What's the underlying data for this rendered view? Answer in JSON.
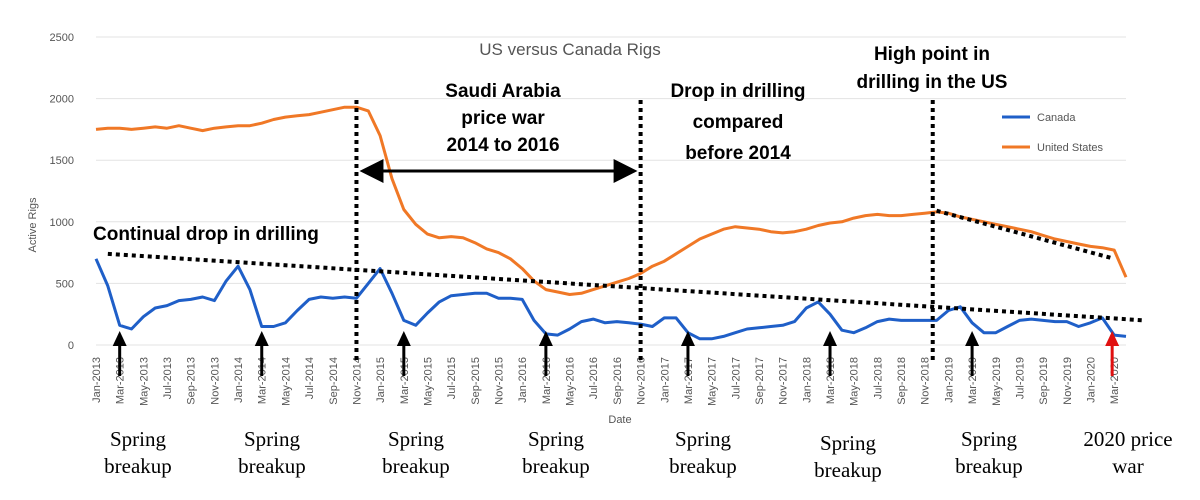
{
  "chart_data": {
    "type": "line",
    "title": "US versus Canada Rigs",
    "xlabel": "Date",
    "ylabel": "Active Rigs",
    "ylim": [
      0,
      2500
    ],
    "yticks": [
      0,
      500,
      1000,
      1500,
      2000,
      2500
    ],
    "x": [
      "Jan-2013",
      "Feb-2013",
      "Mar-2013",
      "Apr-2013",
      "May-2013",
      "Jun-2013",
      "Jul-2013",
      "Aug-2013",
      "Sep-2013",
      "Oct-2013",
      "Nov-2013",
      "Dec-2013",
      "Jan-2014",
      "Feb-2014",
      "Mar-2014",
      "Apr-2014",
      "May-2014",
      "Jun-2014",
      "Jul-2014",
      "Aug-2014",
      "Sep-2014",
      "Oct-2014",
      "Nov-2014",
      "Dec-2014",
      "Jan-2015",
      "Feb-2015",
      "Mar-2015",
      "Apr-2015",
      "May-2015",
      "Jun-2015",
      "Jul-2015",
      "Aug-2015",
      "Sep-2015",
      "Oct-2015",
      "Nov-2015",
      "Dec-2015",
      "Jan-2016",
      "Feb-2016",
      "Mar-2016",
      "Apr-2016",
      "May-2016",
      "Jun-2016",
      "Jul-2016",
      "Aug-2016",
      "Sep-2016",
      "Oct-2016",
      "Nov-2016",
      "Dec-2016",
      "Jan-2017",
      "Feb-2017",
      "Mar-2017",
      "Apr-2017",
      "May-2017",
      "Jun-2017",
      "Jul-2017",
      "Aug-2017",
      "Sep-2017",
      "Oct-2017",
      "Nov-2017",
      "Dec-2017",
      "Jan-2018",
      "Feb-2018",
      "Mar-2018",
      "Apr-2018",
      "May-2018",
      "Jun-2018",
      "Jul-2018",
      "Aug-2018",
      "Sep-2018",
      "Oct-2018",
      "Nov-2018",
      "Dec-2018",
      "Jan-2019",
      "Feb-2019",
      "Mar-2019",
      "Apr-2019",
      "May-2019",
      "Jun-2019",
      "Jul-2019",
      "Aug-2019",
      "Sep-2019",
      "Oct-2019",
      "Nov-2019",
      "Dec-2019",
      "Jan-2020",
      "Feb-2020",
      "Mar-2020",
      "Apr-2020"
    ],
    "tick_labels": [
      "Jan-2013",
      "Mar-2013",
      "May-2013",
      "Jul-2013",
      "Sep-2013",
      "Nov-2013",
      "Jan-2014",
      "Mar-2014",
      "May-2014",
      "Jul-2014",
      "Sep-2014",
      "Nov-2014",
      "Jan-2015",
      "Mar-2015",
      "May-2015",
      "Jul-2015",
      "Sep-2015",
      "Nov-2015",
      "Jan-2016",
      "Mar-2016",
      "May-2016",
      "Jul-2016",
      "Sep-2016",
      "Nov-2016",
      "Jan-2017",
      "Mar-2017",
      "May-2017",
      "Jul-2017",
      "Sep-2017",
      "Nov-2017",
      "Jan-2018",
      "Mar-2018",
      "May-2018",
      "Jul-2018",
      "Sep-2018",
      "Nov-2018",
      "Jan-2019",
      "Mar-2019",
      "May-2019",
      "Jul-2019",
      "Sep-2019",
      "Nov-2019",
      "Jan-2020",
      "Mar-2020"
    ],
    "series": [
      {
        "name": "Canada",
        "color": "#1f5fc8",
        "values": [
          700,
          480,
          160,
          130,
          230,
          300,
          320,
          360,
          370,
          390,
          360,
          520,
          640,
          450,
          150,
          150,
          180,
          280,
          370,
          390,
          380,
          390,
          380,
          500,
          620,
          420,
          200,
          160,
          260,
          350,
          400,
          410,
          420,
          420,
          380,
          380,
          370,
          200,
          90,
          80,
          130,
          190,
          210,
          180,
          190,
          180,
          170,
          150,
          220,
          220,
          100,
          50,
          50,
          70,
          100,
          130,
          140,
          150,
          160,
          190,
          300,
          350,
          250,
          120,
          100,
          140,
          190,
          210,
          200,
          200,
          200,
          200,
          280,
          310,
          180,
          100,
          100,
          150,
          200,
          210,
          200,
          190,
          190,
          150,
          180,
          220,
          80,
          70
        ]
      },
      {
        "name": "United States",
        "color": "#f07826",
        "values": [
          1750,
          1760,
          1760,
          1750,
          1760,
          1770,
          1760,
          1780,
          1760,
          1740,
          1760,
          1770,
          1780,
          1780,
          1800,
          1830,
          1850,
          1860,
          1870,
          1890,
          1910,
          1930,
          1930,
          1900,
          1700,
          1350,
          1100,
          980,
          900,
          870,
          880,
          870,
          830,
          780,
          750,
          700,
          620,
          520,
          450,
          430,
          410,
          420,
          450,
          480,
          510,
          540,
          580,
          640,
          680,
          740,
          800,
          860,
          900,
          940,
          960,
          950,
          940,
          920,
          910,
          920,
          940,
          970,
          990,
          1000,
          1030,
          1050,
          1060,
          1050,
          1050,
          1060,
          1070,
          1080,
          1070,
          1040,
          1020,
          1000,
          980,
          960,
          940,
          920,
          890,
          860,
          840,
          820,
          800,
          790,
          770,
          550
        ]
      }
    ],
    "legend": {
      "position": "right"
    },
    "annotations": {
      "saudi": [
        "Saudi Arabia",
        "price war",
        "2014 to 2016"
      ],
      "drop": [
        "Drop in drilling",
        "compared",
        "before 2014"
      ],
      "high": [
        "High point in",
        "drilling in the US"
      ],
      "continual": "Continual drop in drilling"
    },
    "bottom_labels": [
      {
        "line1": "Spring",
        "line2": "breakup"
      },
      {
        "line1": "Spring",
        "line2": "breakup"
      },
      {
        "line1": "Spring",
        "line2": "breakup"
      },
      {
        "line1": "Spring",
        "line2": "breakup"
      },
      {
        "line1": "Spring",
        "line2": "breakup"
      },
      {
        "line1": "Spring",
        "line2": "breakup"
      },
      {
        "line1": "Spring",
        "line2": "breakup"
      },
      {
        "line1": "2020 price",
        "line2": "war"
      }
    ],
    "spring_months": [
      "Mar-2013",
      "Mar-2014",
      "Mar-2015",
      "Mar-2016",
      "Mar-2017",
      "Mar-2018",
      "Mar-2019"
    ],
    "price_war_month": "Mar-2020",
    "vertical_markers": [
      "Nov-2014",
      "Nov-2016",
      "Nov-2018"
    ]
  }
}
